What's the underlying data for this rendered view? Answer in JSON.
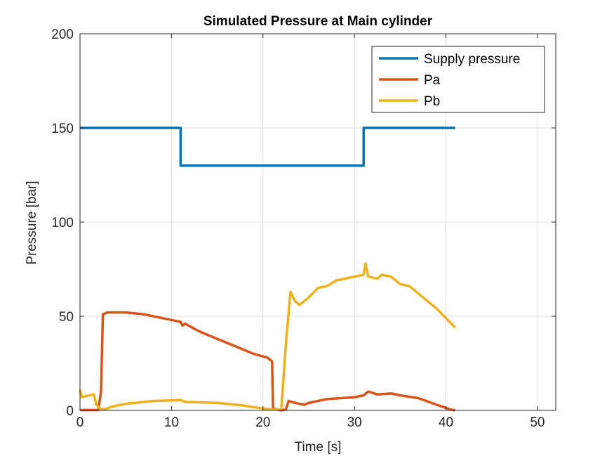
{
  "chart_data": {
    "type": "line",
    "title": "Simulated Pressure at Main cylinder",
    "xlabel": "Time [s]",
    "ylabel": "Pressure [bar]",
    "xlim": [
      0,
      52
    ],
    "ylim": [
      0,
      200
    ],
    "xticks": [
      "0",
      "10",
      "20",
      "30",
      "40",
      "50"
    ],
    "yticks": [
      "0",
      "50",
      "100",
      "150",
      "200"
    ],
    "grid": true,
    "legend_position": "top-right",
    "series": [
      {
        "name": "Supply pressure",
        "color": "#0072BD",
        "points": [
          [
            0,
            150
          ],
          [
            11,
            150
          ],
          [
            11,
            130
          ],
          [
            31,
            130
          ],
          [
            31,
            150
          ],
          [
            41,
            150
          ]
        ]
      },
      {
        "name": "Pa",
        "color": "#D95319",
        "points": [
          [
            0,
            0.2
          ],
          [
            2,
            0.2
          ],
          [
            2.3,
            10
          ],
          [
            2.5,
            51
          ],
          [
            3,
            52
          ],
          [
            5,
            52
          ],
          [
            7,
            51
          ],
          [
            9,
            49
          ],
          [
            11,
            47
          ],
          [
            11.2,
            45
          ],
          [
            11.5,
            46
          ],
          [
            13,
            42
          ],
          [
            15,
            38
          ],
          [
            17,
            34
          ],
          [
            19,
            30
          ],
          [
            20.5,
            28
          ],
          [
            21,
            26
          ],
          [
            21.1,
            1
          ],
          [
            22,
            0
          ],
          [
            22.5,
            0.5
          ],
          [
            22.8,
            5
          ],
          [
            23.5,
            4
          ],
          [
            24.5,
            3
          ],
          [
            25,
            4
          ],
          [
            27,
            6
          ],
          [
            30,
            7
          ],
          [
            31,
            8
          ],
          [
            31.5,
            10
          ],
          [
            32.5,
            8.5
          ],
          [
            34,
            9
          ],
          [
            35,
            8
          ],
          [
            37,
            6.5
          ],
          [
            39,
            3
          ],
          [
            40.5,
            0.5
          ],
          [
            41,
            0
          ]
        ]
      },
      {
        "name": "Pb",
        "color": "#EDB120",
        "points": [
          [
            0,
            11
          ],
          [
            0.2,
            7
          ],
          [
            1,
            8
          ],
          [
            1.5,
            8.5
          ],
          [
            1.8,
            3
          ],
          [
            2.2,
            1
          ],
          [
            2.5,
            0.5
          ],
          [
            3,
            1
          ],
          [
            3.5,
            2
          ],
          [
            5,
            3.5
          ],
          [
            8,
            5
          ],
          [
            11,
            5.5
          ],
          [
            11.5,
            4.5
          ],
          [
            15,
            4
          ],
          [
            18,
            2.5
          ],
          [
            20,
            1
          ],
          [
            21,
            0.5
          ],
          [
            22,
            0.5
          ],
          [
            22.5,
            35
          ],
          [
            23,
            63
          ],
          [
            23.5,
            58
          ],
          [
            24,
            56
          ],
          [
            25,
            60
          ],
          [
            26,
            65
          ],
          [
            27,
            66
          ],
          [
            28,
            69
          ],
          [
            30,
            71
          ],
          [
            31,
            72
          ],
          [
            31.2,
            78
          ],
          [
            31.5,
            71
          ],
          [
            32.5,
            70
          ],
          [
            33,
            72
          ],
          [
            34,
            71
          ],
          [
            35,
            67
          ],
          [
            36,
            66
          ],
          [
            37,
            62
          ],
          [
            39,
            54
          ],
          [
            40,
            49
          ],
          [
            41,
            44
          ]
        ]
      }
    ]
  }
}
